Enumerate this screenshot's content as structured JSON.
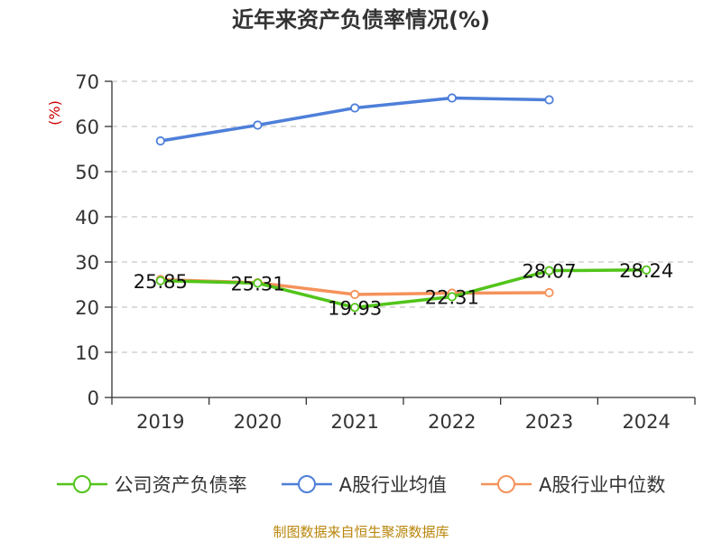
{
  "title": "近年来资产负债率情况(%)",
  "source": "制图数据来自恒生聚源数据库",
  "chart_data": {
    "type": "line",
    "title": "近年来资产负债率情况(%)",
    "ylabel": "(%)",
    "xlabel": "",
    "categories": [
      "2019",
      "2020",
      "2021",
      "2022",
      "2023",
      "2024"
    ],
    "ylim": [
      0,
      70
    ],
    "yticks": [
      0,
      10,
      20,
      30,
      40,
      50,
      60,
      70
    ],
    "grid": true,
    "legend_position": "bottom",
    "series": [
      {
        "name": "公司资产负债率",
        "color": "#52c41a",
        "values": [
          25.85,
          25.31,
          19.93,
          22.31,
          28.07,
          28.24
        ],
        "labels": [
          "25.85",
          "25.31",
          "19.93",
          "22.31",
          "28.07",
          "28.24"
        ]
      },
      {
        "name": "A股行业均值",
        "color": "#4e7fd9",
        "values": [
          56.8,
          60.3,
          64.1,
          66.3,
          65.9,
          null
        ]
      },
      {
        "name": "A股行业中位数",
        "color": "#f5925b",
        "values": [
          26.1,
          25.4,
          22.8,
          23.1,
          23.2,
          null
        ]
      }
    ]
  }
}
